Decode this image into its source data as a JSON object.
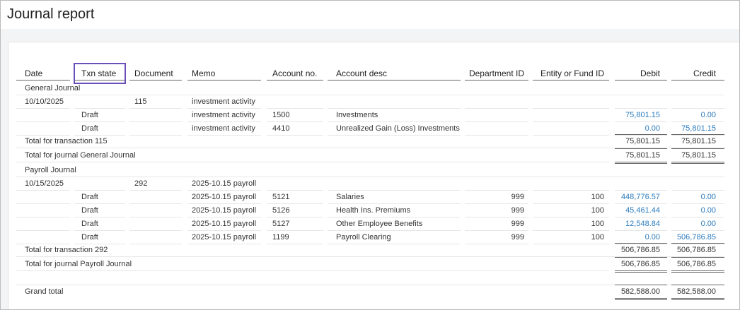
{
  "header": {
    "title": "Journal report"
  },
  "table": {
    "columns": [
      "Date",
      "Txn state",
      "Document",
      "Memo",
      "Account no.",
      "Account desc",
      "Department ID",
      "Entity or Fund ID",
      "Debit",
      "Credit"
    ],
    "journals": [
      {
        "name": "General Journal",
        "date": "10/10/2025",
        "document": "115",
        "memo": "investment activity",
        "lines": [
          {
            "txn_state": "Draft",
            "memo": "investment activity",
            "account_no": "1500",
            "account_desc": "Investments",
            "debit": "75,801.15",
            "credit": "0.00"
          },
          {
            "txn_state": "Draft",
            "memo": "investment activity",
            "account_no": "4410",
            "account_desc": "Unrealized Gain (Loss) Investments",
            "debit": "0.00",
            "credit": "75,801.15"
          }
        ],
        "transaction_total": {
          "label": "Total for transaction 115",
          "debit": "75,801.15",
          "credit": "75,801.15"
        },
        "journal_total": {
          "label": "Total for journal General Journal",
          "debit": "75,801.15",
          "credit": "75,801.15"
        }
      },
      {
        "name": "Payroll Journal",
        "date": "10/15/2025",
        "document": "292",
        "memo": "2025-10.15 payroll",
        "lines": [
          {
            "txn_state": "Draft",
            "memo": "2025-10.15 payroll",
            "account_no": "5121",
            "account_desc": "Salaries",
            "department_id": "999",
            "entity_id": "100",
            "debit": "448,776.57",
            "credit": "0.00"
          },
          {
            "txn_state": "Draft",
            "memo": "2025-10.15 payroll",
            "account_no": "5126",
            "account_desc": "Health Ins. Premiums",
            "department_id": "999",
            "entity_id": "100",
            "debit": "45,461.44",
            "credit": "0.00"
          },
          {
            "txn_state": "Draft",
            "memo": "2025-10.15 payroll",
            "account_no": "5127",
            "account_desc": "Other Employee Benefits",
            "department_id": "999",
            "entity_id": "100",
            "debit": "12,548.84",
            "credit": "0.00"
          },
          {
            "txn_state": "Draft",
            "memo": "2025-10.15 payroll",
            "account_no": "1199",
            "account_desc": "Payroll Clearing",
            "department_id": "999",
            "entity_id": "100",
            "debit": "0.00",
            "credit": "506,786.85"
          }
        ],
        "transaction_total": {
          "label": "Total for transaction 292",
          "debit": "506,786.85",
          "credit": "506,786.85"
        },
        "journal_total": {
          "label": "Total for journal Payroll Journal",
          "debit": "506,786.85",
          "credit": "506,786.85"
        }
      }
    ],
    "grand_total": {
      "label": "Grand total",
      "debit": "582,588.00",
      "credit": "582,588.00"
    }
  }
}
